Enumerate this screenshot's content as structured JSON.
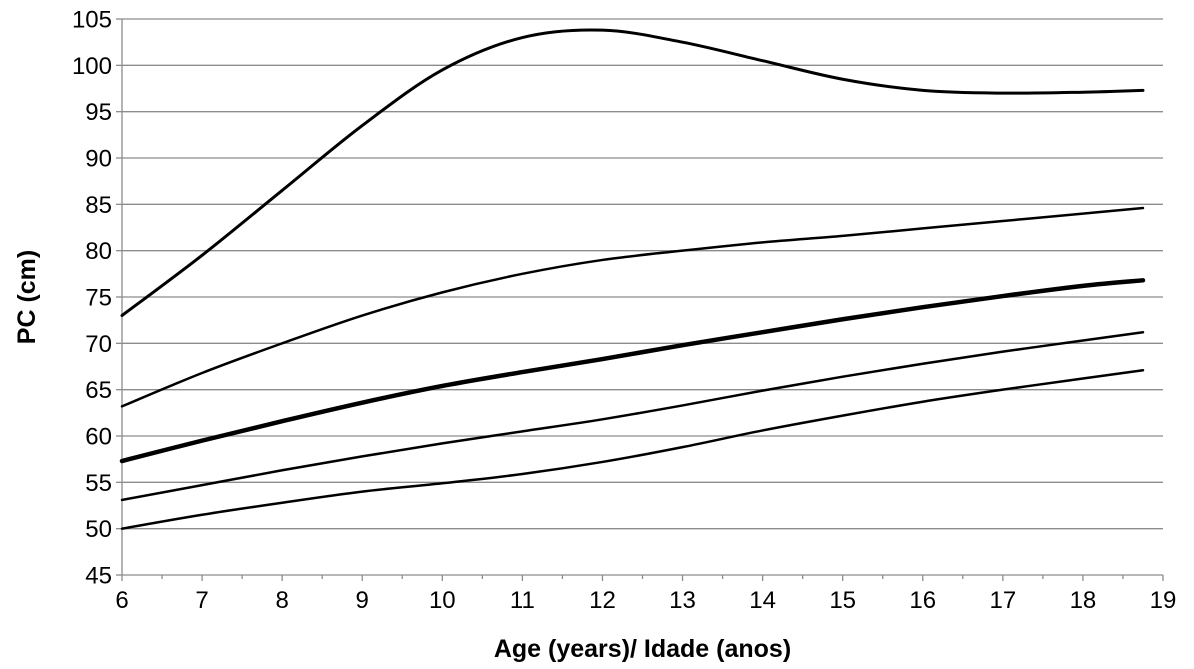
{
  "chart_data": {
    "type": "line",
    "title": "",
    "xlabel": "Age (years)/ Idade (anos)",
    "ylabel": "PC (cm)",
    "xlim": [
      6,
      19
    ],
    "ylim": [
      45,
      105
    ],
    "xticks": [
      6,
      7,
      8,
      9,
      10,
      11,
      12,
      13,
      14,
      15,
      16,
      17,
      18,
      19
    ],
    "yticks": [
      45,
      50,
      55,
      60,
      65,
      70,
      75,
      80,
      85,
      90,
      95,
      100,
      105
    ],
    "grid": "horizontal",
    "legend": "none",
    "line_color": "#000000",
    "grid_color": "#8c8c8c",
    "series": [
      {
        "stroke_width": 3,
        "points": [
          [
            6,
            73.0
          ],
          [
            7,
            79.5
          ],
          [
            8,
            86.5
          ],
          [
            9,
            93.5
          ],
          [
            10,
            99.5
          ],
          [
            11,
            103.0
          ],
          [
            12,
            103.8
          ],
          [
            13,
            102.5
          ],
          [
            14,
            100.5
          ],
          [
            15,
            98.5
          ],
          [
            16,
            97.3
          ],
          [
            17,
            97.0
          ],
          [
            18,
            97.1
          ],
          [
            18.75,
            97.3
          ]
        ]
      },
      {
        "stroke_width": 2.5,
        "points": [
          [
            6,
            63.2
          ],
          [
            7,
            66.8
          ],
          [
            8,
            70.0
          ],
          [
            9,
            73.0
          ],
          [
            10,
            75.5
          ],
          [
            11,
            77.5
          ],
          [
            12,
            79.0
          ],
          [
            13,
            80.0
          ],
          [
            14,
            80.9
          ],
          [
            15,
            81.6
          ],
          [
            16,
            82.4
          ],
          [
            17,
            83.2
          ],
          [
            18,
            84.0
          ],
          [
            18.75,
            84.6
          ]
        ]
      },
      {
        "stroke_width": 4.5,
        "points": [
          [
            6,
            57.3
          ],
          [
            7,
            59.5
          ],
          [
            8,
            61.6
          ],
          [
            9,
            63.6
          ],
          [
            10,
            65.4
          ],
          [
            11,
            66.9
          ],
          [
            12,
            68.3
          ],
          [
            13,
            69.8
          ],
          [
            14,
            71.2
          ],
          [
            15,
            72.6
          ],
          [
            16,
            73.9
          ],
          [
            17,
            75.1
          ],
          [
            18,
            76.2
          ],
          [
            18.75,
            76.8
          ]
        ]
      },
      {
        "stroke_width": 2.5,
        "points": [
          [
            6,
            53.1
          ],
          [
            7,
            54.7
          ],
          [
            8,
            56.3
          ],
          [
            9,
            57.8
          ],
          [
            10,
            59.2
          ],
          [
            11,
            60.5
          ],
          [
            12,
            61.8
          ],
          [
            13,
            63.3
          ],
          [
            14,
            64.9
          ],
          [
            15,
            66.4
          ],
          [
            16,
            67.8
          ],
          [
            17,
            69.1
          ],
          [
            18,
            70.3
          ],
          [
            18.75,
            71.2
          ]
        ]
      },
      {
        "stroke_width": 2.5,
        "points": [
          [
            6,
            50.0
          ],
          [
            7,
            51.5
          ],
          [
            8,
            52.8
          ],
          [
            9,
            54.0
          ],
          [
            10,
            54.9
          ],
          [
            11,
            55.9
          ],
          [
            12,
            57.2
          ],
          [
            13,
            58.8
          ],
          [
            14,
            60.6
          ],
          [
            15,
            62.2
          ],
          [
            16,
            63.7
          ],
          [
            17,
            65.0
          ],
          [
            18,
            66.2
          ],
          [
            18.75,
            67.1
          ]
        ]
      }
    ]
  }
}
